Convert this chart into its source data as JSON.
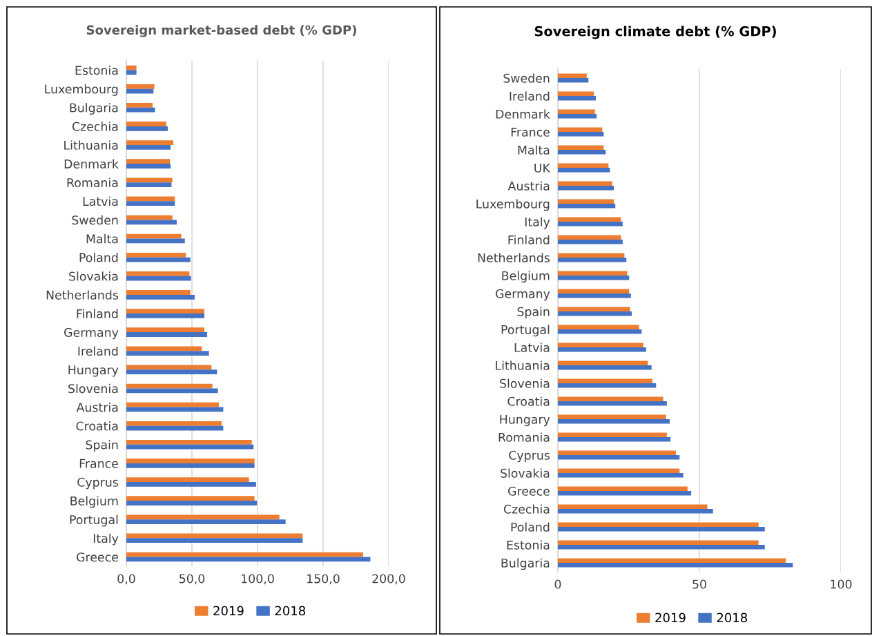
{
  "chart_data": [
    {
      "type": "bar",
      "orientation": "horizontal",
      "title": "Sovereign market-based debt (% GDP)",
      "categories": [
        "Estonia",
        "Luxembourg",
        "Bulgaria",
        "Czechia",
        "Lithuania",
        "Denmark",
        "Romania",
        "Latvia",
        "Sweden",
        "Malta",
        "Poland",
        "Slovakia",
        "Netherlands",
        "Finland",
        "Germany",
        "Ireland",
        "Hungary",
        "Slovenia",
        "Austria",
        "Croatia",
        "Spain",
        "France",
        "Cyprus",
        "Belgium",
        "Portugal",
        "Italy",
        "Greece"
      ],
      "series": [
        {
          "name": "2019",
          "color": "#ed7d31",
          "values": [
            7.7,
            21.4,
            20.0,
            30.4,
            35.8,
            33.2,
            35.1,
            37.0,
            35.1,
            41.9,
            45.3,
            48.1,
            48.8,
            59.5,
            59.5,
            57.5,
            64.9,
            65.6,
            70.5,
            72.6,
            95.6,
            97.7,
            93.5,
            97.7,
            116.7,
            134.4,
            180.5
          ]
        },
        {
          "name": "2018",
          "color": "#4472c4",
          "values": [
            7.7,
            20.7,
            21.9,
            31.6,
            33.7,
            33.7,
            34.4,
            37.0,
            38.4,
            44.6,
            48.8,
            49.3,
            52.1,
            59.5,
            61.6,
            63.0,
            69.1,
            69.8,
            73.9,
            73.9,
            97.0,
            97.7,
            98.9,
            99.6,
            121.4,
            134.4,
            186.0
          ]
        }
      ],
      "xlim": [
        0,
        200
      ],
      "xticks": [
        {
          "value": 0,
          "label": "0,0"
        },
        {
          "value": 50,
          "label": "50,0"
        },
        {
          "value": 100,
          "label": "100,0"
        },
        {
          "value": 150,
          "label": "150,0"
        },
        {
          "value": 200,
          "label": "200,0"
        }
      ],
      "grid": "x",
      "legend": "bottom"
    },
    {
      "type": "bar",
      "orientation": "horizontal",
      "title": "Sovereign climate debt (% GDP)",
      "categories": [
        "Sweden",
        "Ireland",
        "Denmark",
        "France",
        "Malta",
        "UK",
        "Austria",
        "Luxembourg",
        "Italy",
        "Finland",
        "Netherlands",
        "Belgium",
        "Germany",
        "Spain",
        "Portugal",
        "Latvia",
        "Lithuania",
        "Slovenia",
        "Croatia",
        "Hungary",
        "Romania",
        "Cyprus",
        "Slovakia",
        "Greece",
        "Czechia",
        "Poland",
        "Estonia",
        "Bulgaria"
      ],
      "series": [
        {
          "name": "2019",
          "color": "#ed7d31",
          "values": [
            10.2,
            12.7,
            13.1,
            15.7,
            16.2,
            17.9,
            19.2,
            19.8,
            22.3,
            22.3,
            23.5,
            24.5,
            25.2,
            25.5,
            28.7,
            30.2,
            31.8,
            33.4,
            37.2,
            38.2,
            38.5,
            41.7,
            43.0,
            45.8,
            52.8,
            70.9,
            70.9,
            80.5
          ]
        },
        {
          "name": "2018",
          "color": "#4472c4",
          "values": [
            10.8,
            13.4,
            13.7,
            16.2,
            16.9,
            18.4,
            19.8,
            20.3,
            22.9,
            22.9,
            24.2,
            25.2,
            25.8,
            26.1,
            29.6,
            31.2,
            33.1,
            34.7,
            38.5,
            39.5,
            39.8,
            43.0,
            44.3,
            47.1,
            54.8,
            73.1,
            73.1,
            83.0
          ]
        }
      ],
      "xlim": [
        0,
        100
      ],
      "xticks": [
        0,
        50,
        100
      ],
      "grid": "x",
      "legend": "bottom"
    }
  ]
}
